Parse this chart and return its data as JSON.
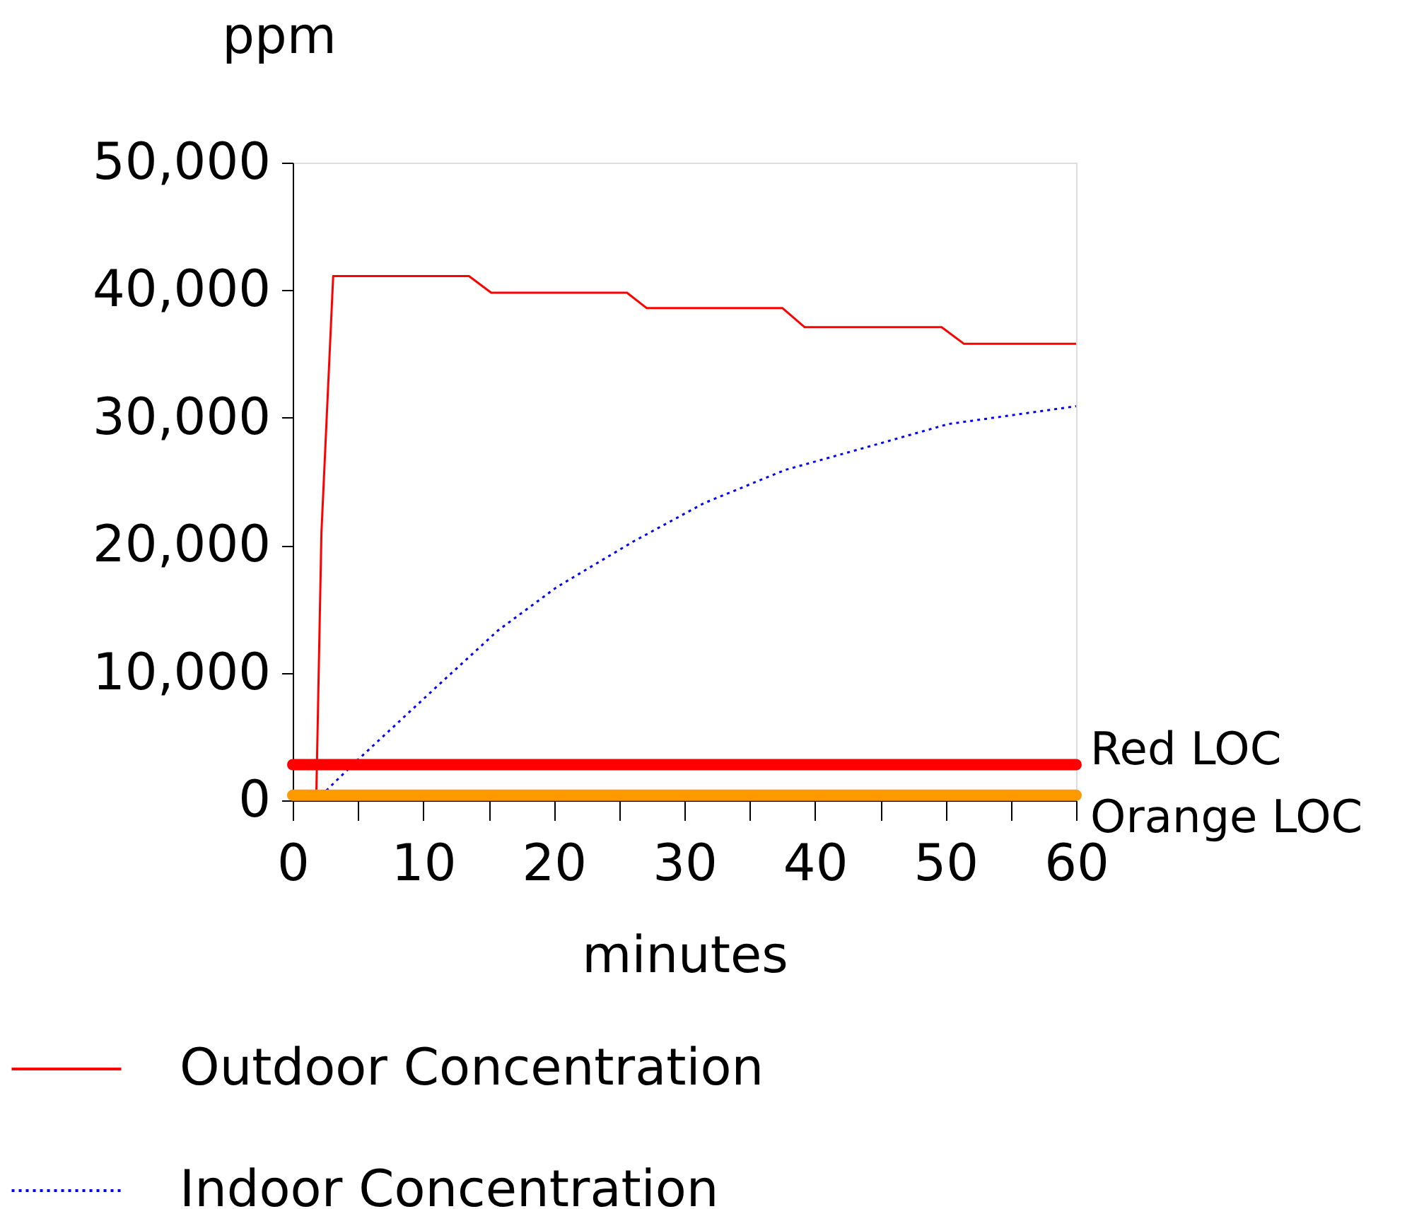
{
  "chart_data": {
    "type": "line",
    "ylabel": "ppm",
    "xlabel": "minutes",
    "xlim": [
      0,
      60
    ],
    "xticks": [
      0,
      {
        "value": 5,
        "label": null
      },
      10,
      {
        "value": 15,
        "label": null
      },
      20,
      {
        "value": 25,
        "label": null
      },
      30,
      {
        "value": 35,
        "label": null
      },
      40,
      {
        "value": 45,
        "label": null
      },
      50,
      {
        "value": 55,
        "label": null
      },
      60
    ],
    "ylim": [
      0,
      50000
    ],
    "yticks": [
      {
        "value": 0,
        "label": "0"
      },
      {
        "value": 10000,
        "label": "10,000"
      },
      {
        "value": 20000,
        "label": "20,000"
      },
      {
        "value": 30000,
        "label": "30,000"
      },
      {
        "value": 40000,
        "label": "40,000"
      },
      {
        "value": 50000,
        "label": "50,000"
      }
    ],
    "grid": false,
    "legend": "bottom",
    "marker": "none",
    "series": [
      {
        "name": "Outdoor Concentration",
        "color": "#ff0000",
        "line_style": "solid",
        "x": [
          1.8,
          2.2,
          3.1,
          13.5,
          15.2,
          25.6,
          27.1,
          37.5,
          39.2,
          49.7,
          51.4,
          60
        ],
        "values": [
          0,
          21000,
          41100,
          41100,
          39800,
          39800,
          38600,
          38600,
          37100,
          37100,
          35800,
          35800
        ]
      },
      {
        "name": "Indoor Concentration",
        "color": "#0000ff",
        "line_style": "dotted",
        "x": [
          1.8,
          4.8,
          10.7,
          15.7,
          20.2,
          26.1,
          31.5,
          37.7,
          44.0,
          50.2,
          60
        ],
        "values": [
          0,
          3000,
          8600,
          13300,
          16700,
          20300,
          23300,
          25900,
          27700,
          29500,
          30900
        ]
      }
    ],
    "ref_lines": [
      {
        "axis": "y",
        "value": 2800,
        "label": "Red LOC",
        "color": "#ff0000"
      },
      {
        "axis": "y",
        "value": 400,
        "label": "Orange LOC",
        "color": "#ff9900"
      }
    ]
  }
}
